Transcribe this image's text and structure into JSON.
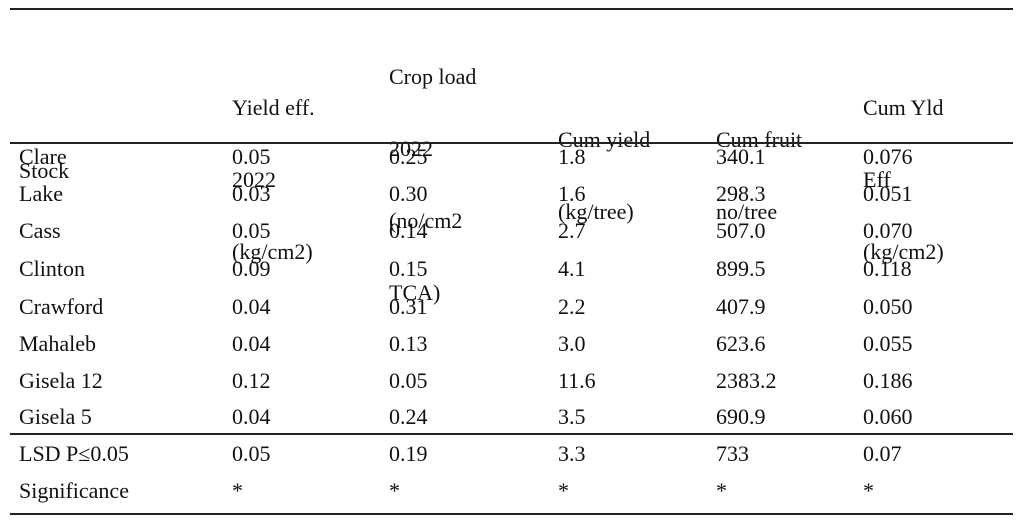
{
  "table": {
    "headers": [
      [
        "Stock"
      ],
      [
        "Yield eff.",
        "2022",
        "(kg/cm2)"
      ],
      [
        "Crop load",
        "2022",
        "(no/cm2",
        "TCA)"
      ],
      [
        "Cum yield",
        "(kg/tree)"
      ],
      [
        "Cum fruit",
        "no/tree"
      ],
      [
        "Cum Yld",
        "Eff",
        "(kg/cm2)"
      ]
    ],
    "rows": [
      [
        "Clare",
        "0.05",
        "0.25",
        "1.8",
        "340.1",
        "0.076"
      ],
      [
        "Lake",
        "0.03",
        "0.30",
        "1.6",
        "298.3",
        "0.051"
      ],
      [
        "Cass",
        "0.05",
        "0.14",
        "2.7",
        "507.0",
        "0.070"
      ],
      [
        "Clinton",
        "0.09",
        "0.15",
        "4.1",
        "899.5",
        "0.118"
      ],
      [
        "Crawford",
        "0.04",
        "0.31",
        "2.2",
        "407.9",
        "0.050"
      ],
      [
        "Mahaleb",
        "0.04",
        "0.13",
        "3.0",
        "623.6",
        "0.055"
      ],
      [
        "Gisela 12",
        "0.12",
        "0.05",
        "11.6",
        "2383.2",
        "0.186"
      ],
      [
        "Gisela 5",
        "0.04",
        "0.24",
        "3.5",
        "690.9",
        "0.060"
      ]
    ],
    "footer_rows": [
      [
        "LSD P≤0.05",
        "0.05",
        "0.19",
        "3.3",
        "733",
        "0.07"
      ],
      [
        "Significance",
        "*",
        "*",
        "*",
        "*",
        "*"
      ]
    ]
  }
}
